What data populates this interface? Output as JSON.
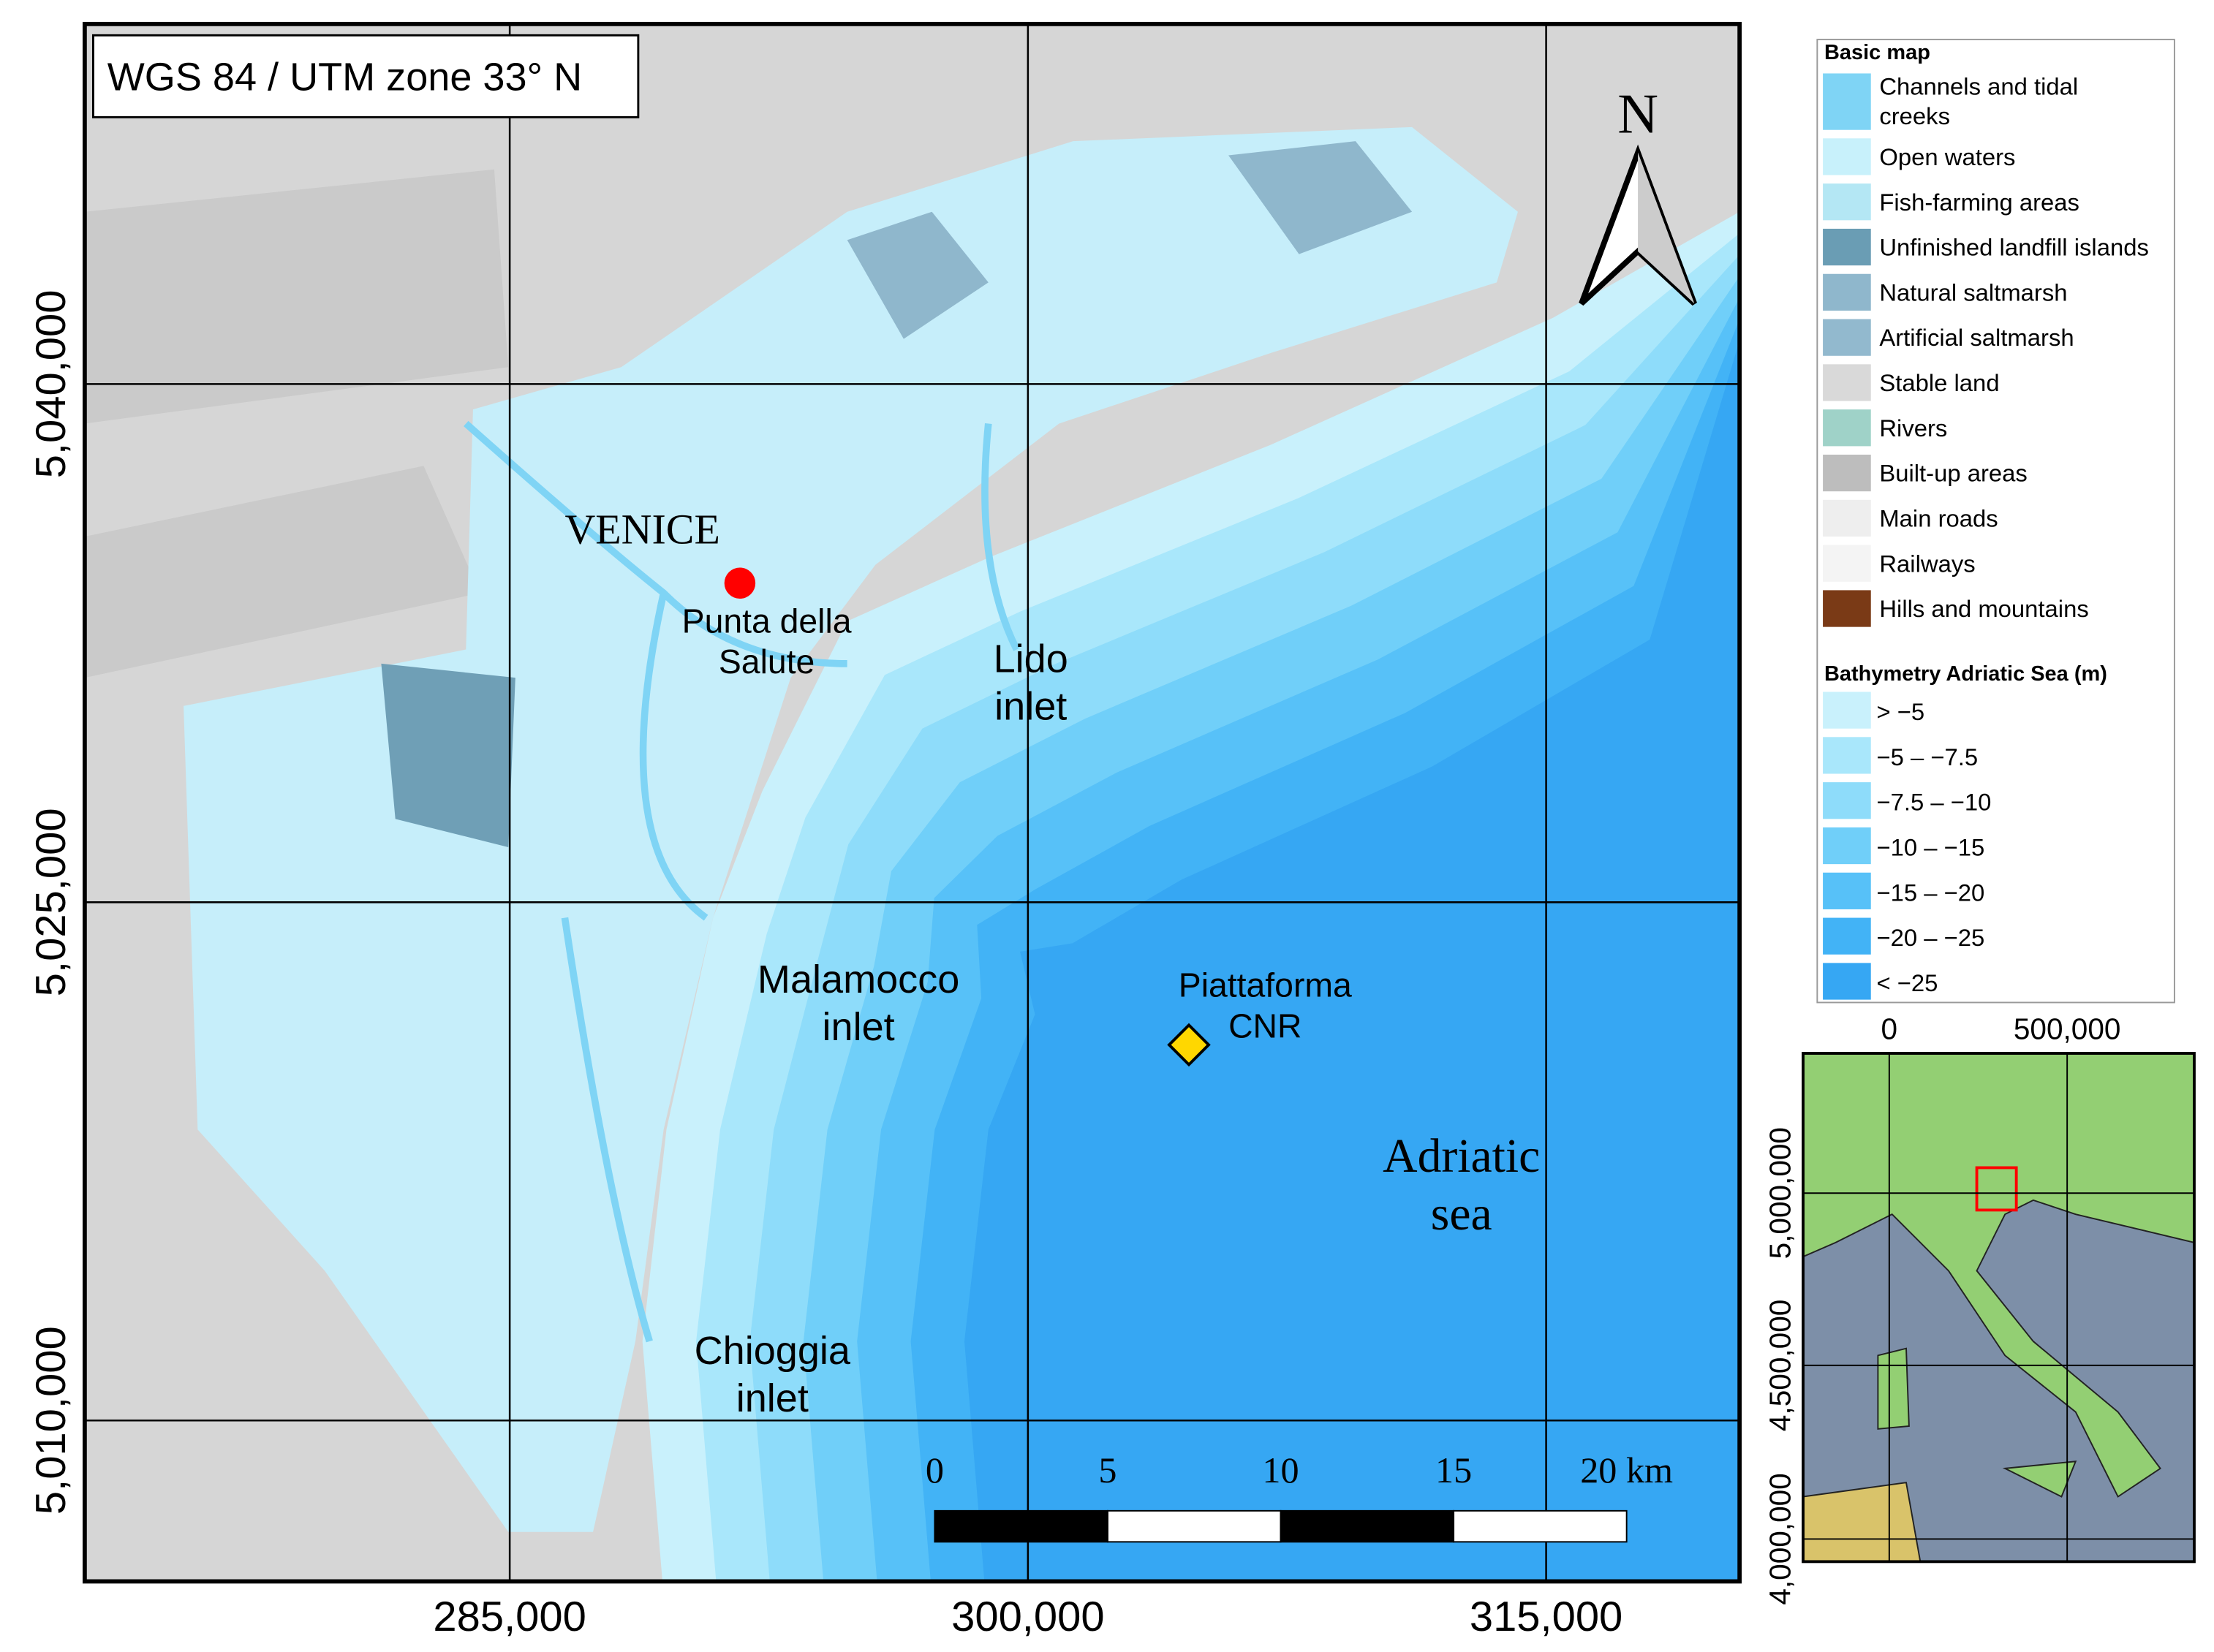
{
  "crs_label": "WGS 84 / UTM zone 33° N",
  "north_label": "N",
  "main_map": {
    "x_ticks": [
      "285,000",
      "300,000",
      "315,000"
    ],
    "y_ticks": [
      "5,040,000",
      "5,025,000",
      "5,010,000"
    ],
    "places": [
      {
        "lines": [
          "VENICE"
        ]
      },
      {
        "lines": [
          "Punta della",
          "Salute"
        ]
      },
      {
        "lines": [
          "Lido",
          "inlet"
        ]
      },
      {
        "lines": [
          "Malamocco",
          "inlet"
        ]
      },
      {
        "lines": [
          "Piattaforma",
          "CNR"
        ]
      },
      {
        "lines": [
          "Adriatic",
          "sea"
        ]
      },
      {
        "lines": [
          "Chioggia",
          "inlet"
        ]
      }
    ]
  },
  "scale_bar": {
    "labels": [
      "0",
      "5",
      "10",
      "15",
      "20 km"
    ]
  },
  "legend": {
    "basic_map": {
      "title": "Basic map",
      "items": [
        {
          "label": "Channels and tidal creeks",
          "color": "#7fd4f5"
        },
        {
          "label": "Open waters",
          "color": "#c8f1fb"
        },
        {
          "label": "Fish-farming areas",
          "color": "#b4e7f4"
        },
        {
          "label": "Unfinished landfill islands",
          "color": "#6a9db4"
        },
        {
          "label": "Natural saltmarsh",
          "color": "#8fb7cc"
        },
        {
          "label": "Artificial saltmarsh",
          "color": "#92b9ce"
        },
        {
          "label": "Stable land",
          "color": "#d9d9d9"
        },
        {
          "label": "Rivers",
          "color": "#9fd2c8"
        },
        {
          "label": "Built-up areas",
          "color": "#bdbdbd"
        },
        {
          "label": "Main roads",
          "color": "#eeeeee"
        },
        {
          "label": "Railways",
          "color": "#f4f4f4"
        },
        {
          "label": "Hills and mountains",
          "color": "#7a3a16"
        }
      ]
    },
    "bathymetry": {
      "title": "Bathymetry Adriatic Sea (m)",
      "items": [
        {
          "label": "> −5",
          "color": "#c9f1fc"
        },
        {
          "label": "−5 – −7.5",
          "color": "#a9e7fb"
        },
        {
          "label": "−7.5 – −10",
          "color": "#8edcfa"
        },
        {
          "label": "−10 – −15",
          "color": "#70cff9"
        },
        {
          "label": "−15 – −20",
          "color": "#57c1f8"
        },
        {
          "label": "−20 – −25",
          "color": "#42b3f6"
        },
        {
          "label": "< −25",
          "color": "#36a7f3"
        }
      ]
    }
  },
  "inset": {
    "x_ticks": [
      "0",
      "500,000"
    ],
    "y_ticks": [
      "5,000,000",
      "4,500,000",
      "4,000,000"
    ]
  }
}
